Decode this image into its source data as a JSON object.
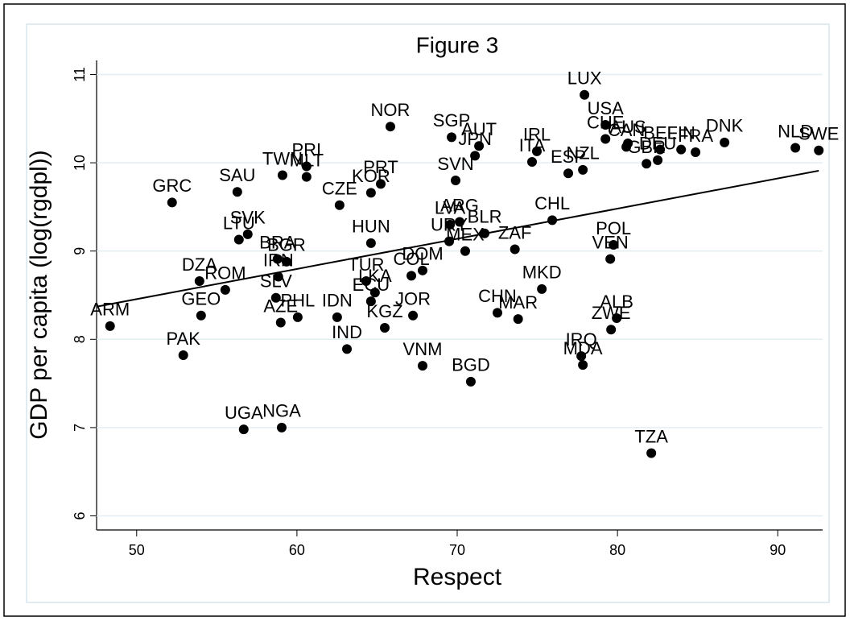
{
  "chart_data": {
    "type": "scatter",
    "title": "Figure 3",
    "xlabel": "Respect",
    "ylabel": "GDP per capita (log(rgdpl))",
    "xlim": [
      47.5,
      92.8
    ],
    "ylim": [
      5.84,
      11.16
    ],
    "xticks": [
      50,
      60,
      70,
      80,
      90
    ],
    "yticks": [
      6,
      7,
      8,
      9,
      10,
      11
    ],
    "grid": true,
    "color": "#000000",
    "labels": [
      "ARM",
      "PAK",
      "GRC",
      "DZA",
      "GEO",
      "ROM",
      "SAU",
      "LTU",
      "SVK",
      "UGA",
      "NGA",
      "BRA",
      "BGR",
      "IRN",
      "SLV",
      "AZE",
      "PHL",
      "TWN",
      "PRI",
      "MLT",
      "IDN",
      "CZE",
      "IND",
      "KOR",
      "PRT",
      "HUN",
      "TUR",
      "ECU",
      "LKA",
      "KGZ",
      "NOR",
      "COL",
      "DOM",
      "JOR",
      "VNM",
      "URY",
      "LVA",
      "ARG",
      "MEX",
      "SGP",
      "SVN",
      "AUT",
      "JPN",
      "BLR",
      "CHN",
      "BGD",
      "MAR",
      "ZAF",
      "ITA",
      "IRL",
      "MKD",
      "CHL",
      "ESP",
      "NZL",
      "LUX",
      "USA",
      "CHE",
      "CAN",
      "AUS",
      "GBR",
      "DEU",
      "BEL",
      "FIN",
      "FRA",
      "DNK",
      "NLD",
      "SWE",
      "POL",
      "VEN",
      "ALB",
      "ZWE",
      "IRQ",
      "MDA",
      "TZA"
    ],
    "x": [
      48.34,
      52.91,
      52.21,
      53.92,
      54.02,
      55.53,
      56.28,
      56.38,
      56.93,
      56.68,
      59.05,
      58.79,
      59.35,
      58.84,
      58.69,
      58.99,
      60.05,
      59.1,
      60.6,
      60.6,
      62.51,
      62.66,
      63.12,
      64.62,
      65.23,
      64.62,
      64.32,
      64.62,
      64.87,
      65.48,
      65.83,
      67.14,
      67.84,
      67.24,
      67.84,
      69.5,
      69.55,
      70.15,
      70.5,
      69.65,
      69.9,
      71.36,
      71.11,
      71.71,
      72.51,
      70.85,
      73.8,
      73.6,
      74.67,
      74.97,
      75.28,
      75.93,
      76.93,
      77.84,
      77.94,
      79.25,
      79.25,
      80.55,
      80.65,
      81.81,
      82.51,
      82.66,
      83.97,
      84.87,
      86.68,
      91.1,
      92.56,
      79.75,
      79.55,
      79.95,
      79.6,
      77.74,
      77.84,
      82.11
    ],
    "y": [
      8.15,
      7.82,
      9.55,
      8.66,
      8.27,
      8.56,
      9.67,
      9.13,
      9.19,
      6.98,
      7.0,
      8.91,
      8.88,
      8.71,
      8.47,
      8.19,
      8.25,
      9.86,
      9.96,
      9.84,
      8.25,
      9.52,
      7.89,
      9.66,
      9.76,
      9.09,
      8.66,
      8.43,
      8.53,
      8.13,
      10.41,
      8.72,
      8.78,
      8.27,
      7.7,
      9.11,
      9.3,
      9.33,
      9.0,
      10.29,
      9.8,
      10.19,
      10.08,
      9.2,
      8.3,
      7.52,
      8.23,
      9.02,
      10.01,
      10.13,
      8.57,
      9.35,
      9.88,
      9.92,
      10.77,
      10.43,
      10.27,
      10.18,
      10.22,
      9.99,
      10.03,
      10.15,
      10.15,
      10.12,
      10.23,
      10.17,
      10.14,
      9.07,
      8.91,
      8.24,
      8.11,
      7.81,
      7.71,
      6.71
    ],
    "fit": {
      "x": [
        47.5,
        92.56
      ],
      "y": [
        8.37,
        9.91
      ]
    }
  }
}
